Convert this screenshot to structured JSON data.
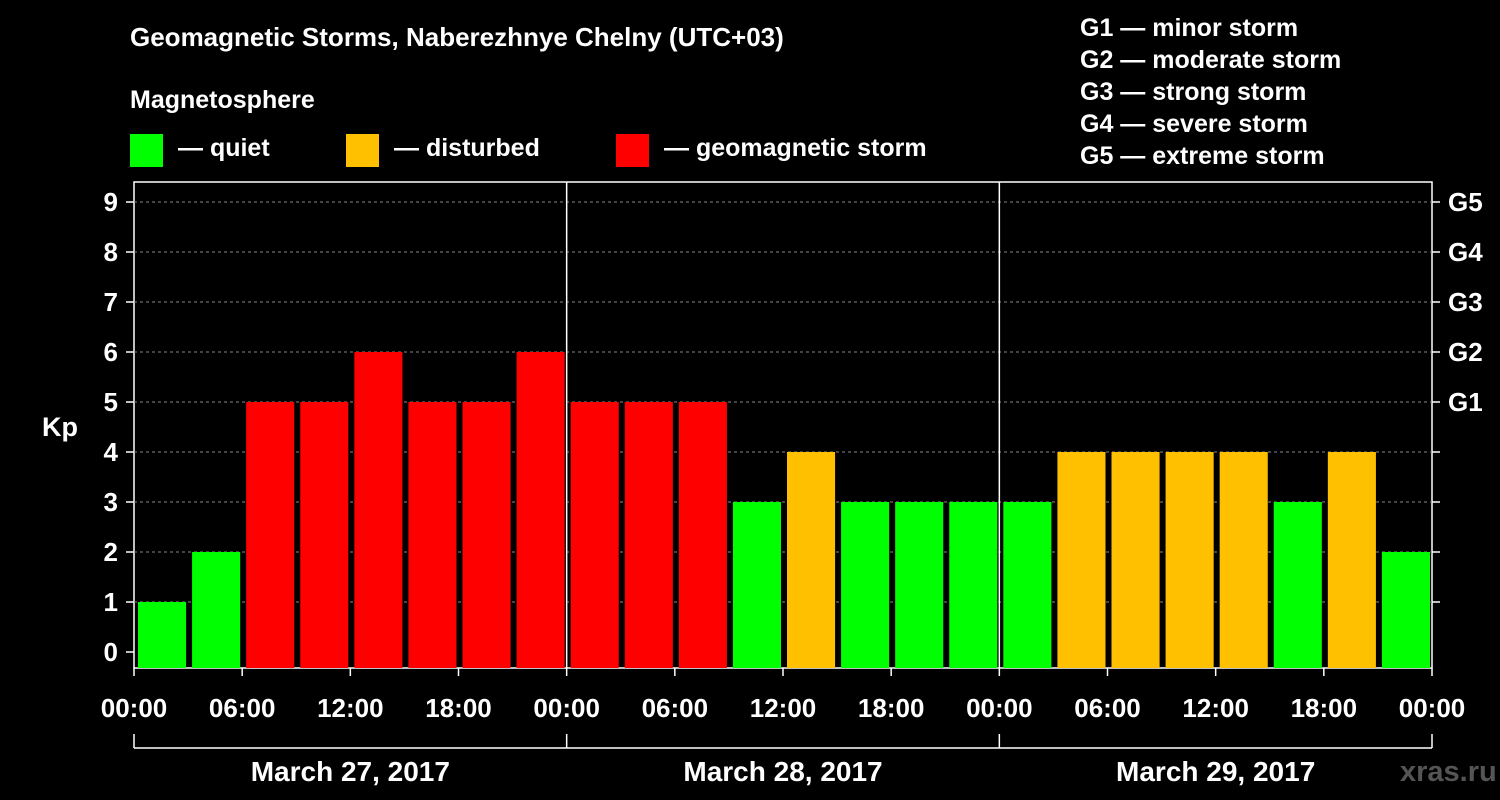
{
  "title": "Geomagnetic Storms, Naberezhnye Chelny (UTC+03)",
  "subtitle": "Magnetosphere",
  "legend": [
    {
      "label": "— quiet",
      "color": "#00ff00"
    },
    {
      "label": "— disturbed",
      "color": "#ffc000"
    },
    {
      "label": "— geomagnetic storm",
      "color": "#ff0000"
    }
  ],
  "g_scale_legend": [
    "G1 — minor storm",
    "G2 — moderate storm",
    "G3 — strong storm",
    "G4 — severe storm",
    "G5 — extreme storm"
  ],
  "watermark": "xras.ru",
  "chart_data": {
    "type": "bar",
    "title": "Geomagnetic Storms, Naberezhnye Chelny (UTC+03)",
    "ylabel": "Kp",
    "ylim": [
      0,
      9
    ],
    "yticks": [
      "0",
      "1",
      "2",
      "3",
      "4",
      "5",
      "6",
      "7",
      "8",
      "9"
    ],
    "right_axis": [
      {
        "kp": 5,
        "label": "G1"
      },
      {
        "kp": 6,
        "label": "G2"
      },
      {
        "kp": 7,
        "label": "G3"
      },
      {
        "kp": 8,
        "label": "G4"
      },
      {
        "kp": 9,
        "label": "G5"
      }
    ],
    "xtick_labels": [
      "00:00",
      "06:00",
      "12:00",
      "18:00",
      "00:00",
      "06:00",
      "12:00",
      "18:00",
      "00:00",
      "06:00",
      "12:00",
      "18:00",
      "00:00"
    ],
    "days": [
      "March 27, 2017",
      "March 28, 2017",
      "March 29, 2017"
    ],
    "interval_hours": 3,
    "values": [
      1,
      2,
      5,
      5,
      6,
      5,
      5,
      6,
      5,
      5,
      5,
      3,
      4,
      3,
      3,
      3,
      3,
      4,
      4,
      4,
      4,
      3,
      4,
      2
    ],
    "colors": {
      "quiet": "#00ff00",
      "disturbed": "#ffc000",
      "storm": "#ff0000"
    },
    "thresholds": {
      "disturbed": 4,
      "storm": 5
    },
    "grid": true
  }
}
